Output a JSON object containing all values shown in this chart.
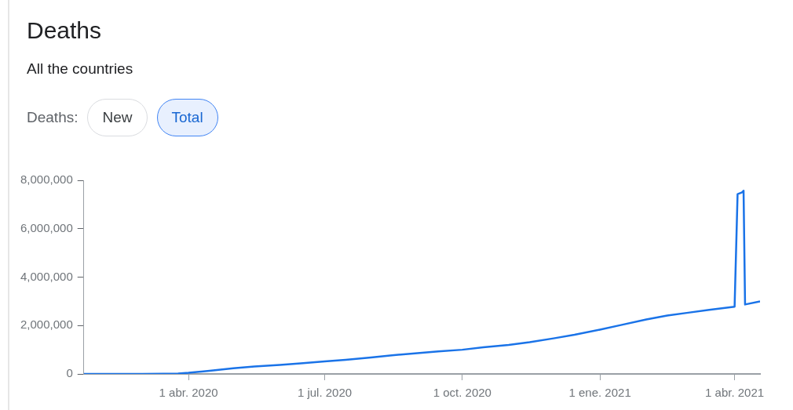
{
  "chart_data": {
    "type": "line",
    "title": "Deaths",
    "subtitle": "All the countries",
    "annotations": [
      "Deaths:",
      "New",
      "Total"
    ],
    "x": [
      "2020-01-22",
      "2020-02-15",
      "2020-03-01",
      "2020-03-15",
      "2020-03-25",
      "2020-04-01",
      "2020-04-15",
      "2020-05-01",
      "2020-05-15",
      "2020-06-01",
      "2020-06-15",
      "2020-07-01",
      "2020-07-15",
      "2020-08-01",
      "2020-08-15",
      "2020-09-01",
      "2020-09-15",
      "2020-10-01",
      "2020-10-15",
      "2020-11-01",
      "2020-11-15",
      "2020-12-01",
      "2020-12-15",
      "2021-01-01",
      "2021-01-15",
      "2021-02-01",
      "2021-02-15",
      "2021-03-01",
      "2021-03-15",
      "2021-04-01",
      "2021-04-03",
      "2021-04-06",
      "2021-04-07",
      "2021-04-08",
      "2021-04-18"
    ],
    "series": [
      {
        "color": "#1a73e8",
        "values": [
          0,
          2000,
          3000,
          6500,
          20000,
          47000,
          130000,
          235000,
          305000,
          375000,
          435000,
          515000,
          580000,
          680000,
          770000,
          860000,
          935000,
          1000000,
          1100000,
          1200000,
          1310000,
          1470000,
          1620000,
          1830000,
          2020000,
          2250000,
          2410000,
          2530000,
          2650000,
          2780000,
          7430000,
          7500000,
          7570000,
          2870000,
          3000000
        ]
      }
    ],
    "xlim": [
      "2020-01-22",
      "2021-04-18"
    ],
    "xticks": [
      {
        "value": "2020-04-01",
        "label": "1 abr. 2020"
      },
      {
        "value": "2020-07-01",
        "label": "1 jul. 2020"
      },
      {
        "value": "2020-10-01",
        "label": "1 oct. 2020"
      },
      {
        "value": "2021-01-01",
        "label": "1 ene. 2021"
      },
      {
        "value": "2021-04-01",
        "label": "1 abr. 2021"
      }
    ],
    "ylim": [
      0,
      8000000
    ],
    "yticks": [
      {
        "value": 0,
        "label": "0"
      },
      {
        "value": 2000000,
        "label": "2,000,000"
      },
      {
        "value": 4000000,
        "label": "4,000,000"
      },
      {
        "value": 6000000,
        "label": "6,000,000"
      },
      {
        "value": 8000000,
        "label": "8,000,000"
      }
    ],
    "grid": false,
    "legend": false,
    "marker": "none",
    "line_style": "solid"
  }
}
